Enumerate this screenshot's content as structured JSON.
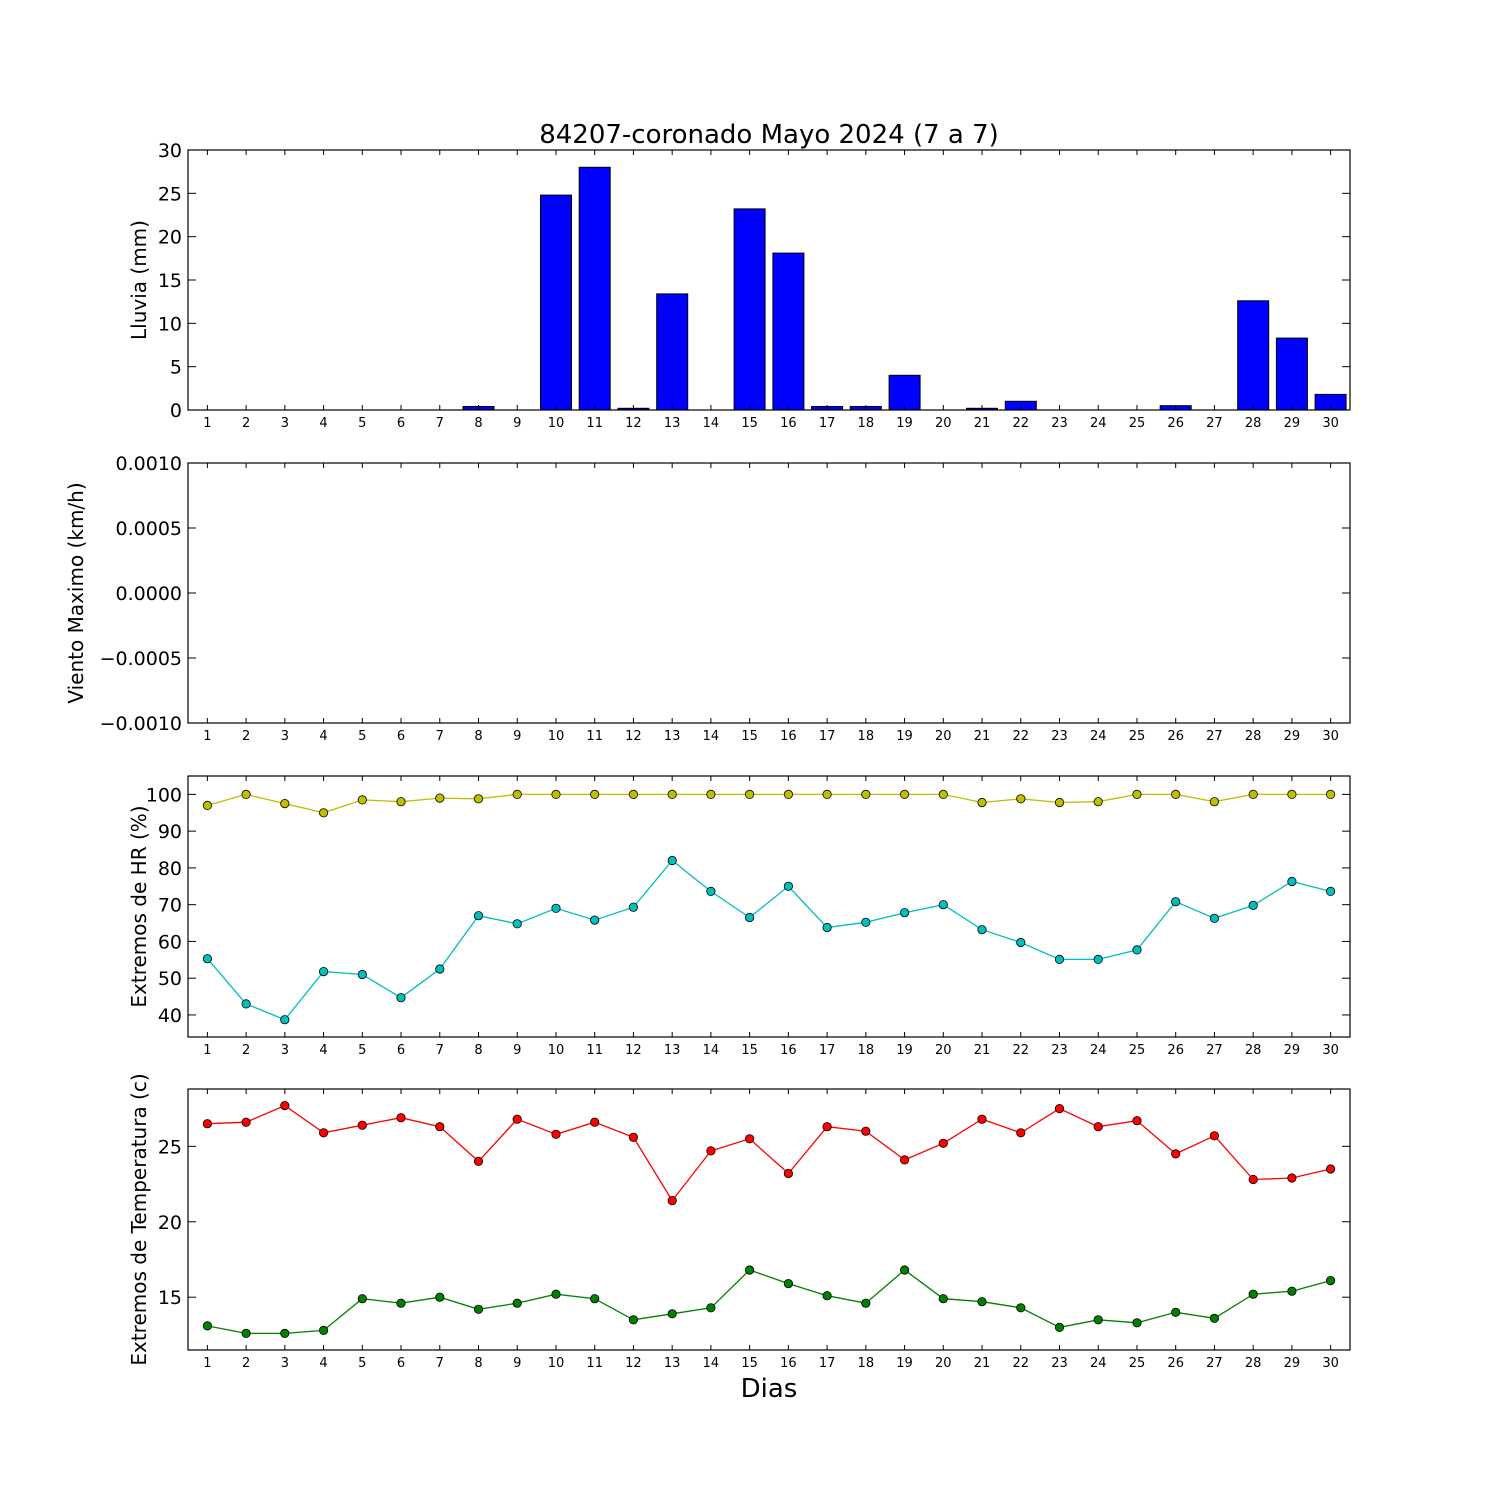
{
  "figure": {
    "title": "84207-coronado Mayo 2024  (7 a 7)",
    "xlabel": "Dias"
  },
  "chart_data": [
    {
      "type": "bar",
      "ylabel": "Lluvia (mm)",
      "ylim": [
        0,
        30
      ],
      "yticks": [
        0,
        5,
        10,
        15,
        20,
        25,
        30
      ],
      "categories": [
        1,
        2,
        3,
        4,
        5,
        6,
        7,
        8,
        9,
        10,
        11,
        12,
        13,
        14,
        15,
        16,
        17,
        18,
        19,
        20,
        21,
        22,
        23,
        24,
        25,
        26,
        27,
        28,
        29,
        30
      ],
      "series": [
        {
          "color": "#0000ff",
          "values": [
            0,
            0,
            0,
            0,
            0,
            0,
            0,
            0.4,
            0,
            24.8,
            28.0,
            0.2,
            13.4,
            0,
            23.2,
            18.1,
            0.4,
            0.4,
            4.0,
            0,
            0.2,
            1.0,
            0,
            0,
            0,
            0.5,
            0,
            12.6,
            8.3,
            1.8
          ]
        }
      ]
    },
    {
      "type": "line",
      "ylabel": "Viento Maximo (km/h)",
      "ylim": [
        -0.001,
        0.001
      ],
      "yticks": [
        -0.001,
        -0.0005,
        0,
        0.0005,
        0.001
      ],
      "ytick_labels": [
        "−0.0010",
        "−0.0005",
        "0.0000",
        "0.0005",
        "0.0010"
      ],
      "categories": [
        1,
        2,
        3,
        4,
        5,
        6,
        7,
        8,
        9,
        10,
        11,
        12,
        13,
        14,
        15,
        16,
        17,
        18,
        19,
        20,
        21,
        22,
        23,
        24,
        25,
        26,
        27,
        28,
        29,
        30
      ],
      "series": []
    },
    {
      "type": "line",
      "ylabel": "Extremos de HR (%)",
      "ylim": [
        34,
        105
      ],
      "yticks": [
        40,
        50,
        60,
        70,
        80,
        90,
        100
      ],
      "categories": [
        1,
        2,
        3,
        4,
        5,
        6,
        7,
        8,
        9,
        10,
        11,
        12,
        13,
        14,
        15,
        16,
        17,
        18,
        19,
        20,
        21,
        22,
        23,
        24,
        25,
        26,
        27,
        28,
        29,
        30
      ],
      "series": [
        {
          "color": "#bfbf00",
          "values": [
            97,
            100,
            97.5,
            95,
            98.5,
            98,
            99,
            98.8,
            100,
            100,
            100,
            100,
            100,
            100,
            100,
            100,
            100,
            100,
            100,
            100,
            97.8,
            98.8,
            97.8,
            98,
            100,
            100,
            98,
            100,
            100,
            100
          ]
        },
        {
          "color": "#00bfbf",
          "values": [
            55.3,
            43,
            38.7,
            51.8,
            51,
            44.7,
            52.5,
            67,
            64.8,
            69,
            65.8,
            69.3,
            82,
            73.6,
            66.5,
            75,
            63.8,
            65.2,
            67.8,
            70,
            63.2,
            59.7,
            55.1,
            55.1,
            57.7,
            70.8,
            66.3,
            69.8,
            76.3,
            73.6
          ]
        }
      ]
    },
    {
      "type": "line",
      "ylabel": "Extremos de Temperatura (c)",
      "ylim": [
        11.5,
        28.8
      ],
      "yticks": [
        15,
        20,
        25
      ],
      "categories": [
        1,
        2,
        3,
        4,
        5,
        6,
        7,
        8,
        9,
        10,
        11,
        12,
        13,
        14,
        15,
        16,
        17,
        18,
        19,
        20,
        21,
        22,
        23,
        24,
        25,
        26,
        27,
        28,
        29,
        30
      ],
      "series": [
        {
          "color": "#ff0000",
          "values": [
            26.5,
            26.6,
            27.7,
            25.9,
            26.4,
            26.9,
            26.3,
            24,
            26.8,
            25.8,
            26.6,
            25.6,
            21.4,
            24.7,
            25.5,
            23.2,
            26.3,
            26,
            24.1,
            25.2,
            26.8,
            25.9,
            27.5,
            26.3,
            26.7,
            24.5,
            25.7,
            22.8,
            22.9,
            23.5
          ]
        },
        {
          "color": "#008000",
          "values": [
            13.1,
            12.6,
            12.6,
            12.8,
            14.9,
            14.6,
            15,
            14.2,
            14.6,
            15.2,
            14.9,
            13.5,
            13.9,
            14.3,
            16.8,
            15.9,
            15.1,
            14.6,
            16.8,
            14.9,
            14.7,
            14.3,
            13,
            13.5,
            13.3,
            14,
            13.6,
            15.2,
            15.4,
            16.1
          ]
        }
      ]
    }
  ]
}
